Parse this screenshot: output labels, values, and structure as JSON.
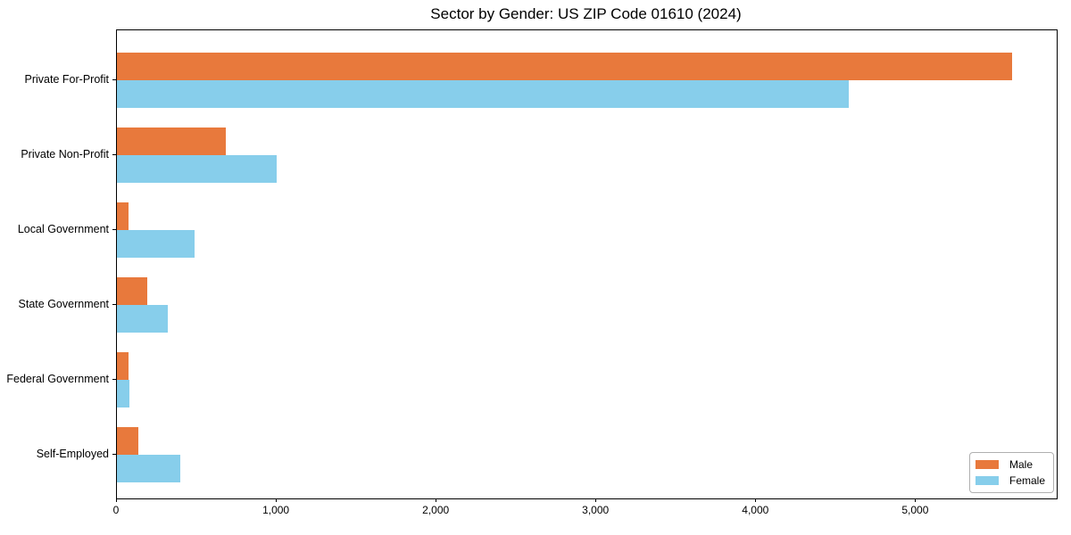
{
  "chart_data": {
    "type": "bar",
    "orientation": "horizontal",
    "title": "Sector by Gender: US ZIP Code 01610 (2024)",
    "xlabel": "",
    "ylabel": "",
    "categories": [
      "Private For-Profit",
      "Private Non-Profit",
      "Local Government",
      "State Government",
      "Federal Government",
      "Self-Employed"
    ],
    "series": [
      {
        "name": "Male",
        "color": "#E8793C",
        "values": [
          5600,
          680,
          75,
          190,
          70,
          135
        ]
      },
      {
        "name": "Female",
        "color": "#87CEEB",
        "values": [
          4580,
          1000,
          485,
          320,
          80,
          395
        ]
      }
    ],
    "xlim": [
      0,
      5880
    ],
    "xticks": [
      0,
      1000,
      2000,
      3000,
      4000,
      5000
    ],
    "xtick_labels": [
      "0",
      "1,000",
      "2,000",
      "3,000",
      "4,000",
      "5,000"
    ],
    "grid": false,
    "legend_position": "lower right",
    "background_color": "#ffffff",
    "frame_color": "#000000"
  },
  "legend": {
    "items": [
      {
        "label": "Male",
        "color": "#E8793C"
      },
      {
        "label": "Female",
        "color": "#87CEEB"
      }
    ]
  }
}
